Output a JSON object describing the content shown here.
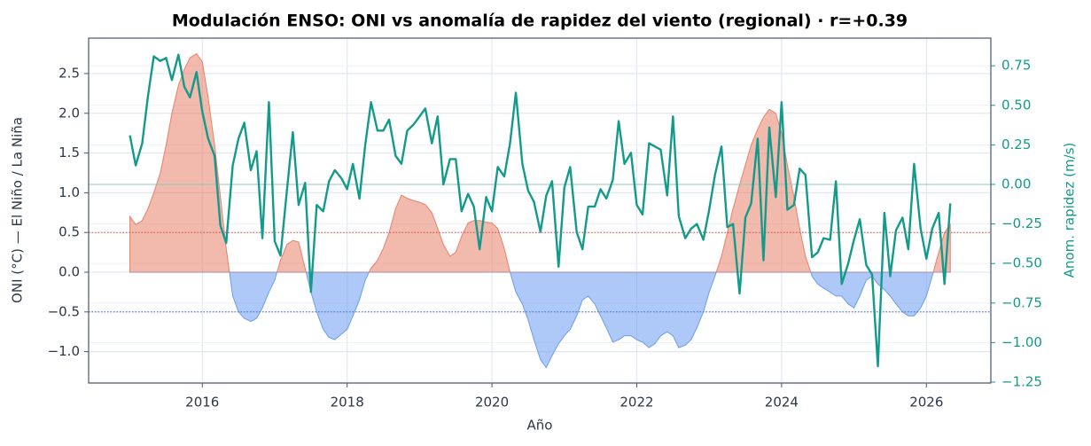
{
  "chart_data": {
    "type": "area-line",
    "title": "Modulación ENSO: ONI vs anomalía de rapidez del viento (regional) · r=+0.39",
    "x_label": "Año",
    "y_label": "ONI (°C) — El Niño / La Niña",
    "y2_label": "Anom. rapidez (m/s)",
    "x": [
      2015,
      2015.08,
      2015.17,
      2015.25,
      2015.33,
      2015.42,
      2015.5,
      2015.58,
      2015.67,
      2015.75,
      2015.83,
      2015.92,
      2016,
      2016.08,
      2016.17,
      2016.25,
      2016.33,
      2016.42,
      2016.5,
      2016.58,
      2016.67,
      2016.75,
      2016.83,
      2016.92,
      2017,
      2017.08,
      2017.17,
      2017.25,
      2017.33,
      2017.42,
      2017.5,
      2017.58,
      2017.67,
      2017.75,
      2017.83,
      2017.92,
      2018,
      2018.08,
      2018.17,
      2018.25,
      2018.33,
      2018.42,
      2018.5,
      2018.58,
      2018.67,
      2018.75,
      2018.83,
      2018.92,
      2019,
      2019.08,
      2019.17,
      2019.25,
      2019.33,
      2019.42,
      2019.5,
      2019.58,
      2019.67,
      2019.75,
      2019.83,
      2019.92,
      2020,
      2020.08,
      2020.17,
      2020.25,
      2020.33,
      2020.42,
      2020.5,
      2020.58,
      2020.67,
      2020.75,
      2020.83,
      2020.92,
      2021,
      2021.08,
      2021.17,
      2021.25,
      2021.33,
      2021.42,
      2021.5,
      2021.58,
      2021.67,
      2021.75,
      2021.83,
      2021.92,
      2022,
      2022.08,
      2022.17,
      2022.25,
      2022.33,
      2022.42,
      2022.5,
      2022.58,
      2022.67,
      2022.75,
      2022.83,
      2022.92,
      2023,
      2023.08,
      2023.17,
      2023.25,
      2023.33,
      2023.42,
      2023.5,
      2023.58,
      2023.67,
      2023.75,
      2023.83,
      2023.92,
      2024,
      2024.08,
      2024.17,
      2024.25,
      2024.33,
      2024.42,
      2024.5,
      2024.58,
      2024.67,
      2024.75,
      2024.83,
      2024.92,
      2025,
      2025.08,
      2025.17,
      2025.25,
      2025.33,
      2025.42,
      2025.5,
      2025.58,
      2025.67,
      2025.75,
      2025.83,
      2025.92,
      2026,
      2026.08,
      2026.17,
      2026.25,
      2026.33
    ],
    "series": [
      {
        "type": "area",
        "axis": "y",
        "colors": {
          "positive": "#e8806a",
          "negative": "#6b9cf0"
        },
        "values": [
          0.7,
          0.6,
          0.65,
          0.8,
          1.0,
          1.25,
          1.6,
          2.0,
          2.35,
          2.55,
          2.7,
          2.75,
          2.65,
          2.2,
          1.6,
          0.95,
          0.3,
          -0.3,
          -0.5,
          -0.58,
          -0.62,
          -0.58,
          -0.45,
          -0.25,
          -0.1,
          0.15,
          0.35,
          0.4,
          0.38,
          0.05,
          -0.25,
          -0.5,
          -0.72,
          -0.82,
          -0.85,
          -0.78,
          -0.72,
          -0.55,
          -0.35,
          -0.1,
          0.05,
          0.15,
          0.3,
          0.5,
          0.8,
          0.97,
          0.93,
          0.9,
          0.88,
          0.85,
          0.75,
          0.55,
          0.35,
          0.2,
          0.25,
          0.45,
          0.62,
          0.65,
          0.65,
          0.63,
          0.62,
          0.55,
          0.3,
          0.0,
          -0.25,
          -0.4,
          -0.6,
          -0.85,
          -1.1,
          -1.2,
          -1.05,
          -0.9,
          -0.8,
          -0.72,
          -0.55,
          -0.35,
          -0.3,
          -0.4,
          -0.55,
          -0.7,
          -0.88,
          -0.85,
          -0.8,
          -0.8,
          -0.85,
          -0.88,
          -0.95,
          -0.9,
          -0.8,
          -0.75,
          -0.8,
          -0.95,
          -0.92,
          -0.85,
          -0.7,
          -0.5,
          -0.25,
          -0.05,
          0.2,
          0.5,
          0.8,
          1.1,
          1.35,
          1.6,
          1.8,
          1.95,
          2.05,
          2.0,
          1.75,
          1.35,
          0.95,
          0.55,
          0.2,
          -0.05,
          -0.15,
          -0.2,
          -0.25,
          -0.3,
          -0.3,
          -0.4,
          -0.45,
          -0.3,
          -0.1,
          -0.05,
          -0.15,
          -0.22,
          -0.3,
          -0.4,
          -0.5,
          -0.55,
          -0.55,
          -0.45,
          -0.3,
          -0.05,
          0.25,
          0.5,
          0.6
        ]
      },
      {
        "type": "line",
        "axis": "y2",
        "color": "#139a8b",
        "values": [
          0.31,
          0.12,
          0.26,
          0.56,
          0.81,
          0.78,
          0.8,
          0.66,
          0.82,
          0.62,
          0.55,
          0.71,
          0.46,
          0.29,
          0.18,
          -0.26,
          -0.37,
          0.12,
          0.29,
          0.39,
          0.09,
          0.21,
          -0.34,
          0.52,
          -0.36,
          -0.45,
          -0.03,
          0.33,
          -0.13,
          0.01,
          -0.68,
          -0.13,
          -0.17,
          0.02,
          0.09,
          0.04,
          -0.03,
          0.13,
          -0.09,
          0.25,
          0.52,
          0.34,
          0.34,
          0.41,
          0.18,
          0.13,
          0.34,
          0.38,
          0.43,
          0.48,
          0.26,
          0.43,
          0.0,
          0.16,
          0.16,
          -0.17,
          -0.06,
          -0.14,
          -0.41,
          -0.08,
          -0.17,
          0.11,
          0.05,
          0.26,
          0.58,
          0.13,
          -0.04,
          -0.11,
          -0.3,
          -0.07,
          0.02,
          -0.52,
          -0.02,
          0.11,
          -0.3,
          -0.41,
          -0.14,
          -0.14,
          -0.03,
          -0.09,
          0.03,
          0.4,
          0.13,
          0.2,
          -0.13,
          -0.19,
          0.26,
          0.24,
          0.22,
          -0.07,
          0.43,
          -0.2,
          -0.34,
          -0.28,
          -0.25,
          -0.35,
          -0.16,
          0.06,
          0.24,
          -0.27,
          -0.25,
          -0.69,
          -0.21,
          -0.12,
          0.29,
          -0.48,
          0.36,
          -0.08,
          0.52,
          -0.16,
          -0.13,
          0.1,
          0.06,
          -0.46,
          -0.43,
          -0.34,
          -0.35,
          0.02,
          -0.63,
          -0.5,
          -0.35,
          -0.22,
          -0.51,
          -0.57,
          -1.15,
          -0.18,
          -0.58,
          -0.29,
          -0.21,
          -0.41,
          0.13,
          -0.28,
          -0.47,
          -0.28,
          -0.18,
          -0.63,
          -0.12
        ]
      }
    ],
    "reference_lines": [
      {
        "axis": "y",
        "value": 0.5,
        "color": "#e74c3c",
        "dash": true
      },
      {
        "axis": "y",
        "value": -0.5,
        "color": "#3b6fd1",
        "dash": true
      },
      {
        "axis": "y2",
        "value": 0,
        "color": "#8fc7bf",
        "dash": false
      }
    ],
    "xlim": [
      2014.43,
      2026.89
    ],
    "xticks": [
      2016,
      2018,
      2020,
      2022,
      2024,
      2026
    ],
    "ylim": [
      -1.395,
      2.946
    ],
    "yticks": [
      {
        "value": -1,
        "label": "−1.0"
      },
      {
        "value": -0.5,
        "label": "−0.5"
      },
      {
        "value": 0,
        "label": "0.0"
      },
      0.5,
      {
        "value": 1,
        "label": "1.0"
      },
      1.5,
      {
        "value": 2,
        "label": "2.0"
      },
      2.5
    ],
    "y2lim": [
      -1.256,
      0.925
    ],
    "y2ticks": [
      {
        "value": -1.25,
        "label": "−1.25"
      },
      {
        "value": -1,
        "label": "−1.00"
      },
      {
        "value": -0.75,
        "label": "−0.75"
      },
      {
        "value": -0.5,
        "label": "−0.50"
      },
      {
        "value": -0.25,
        "label": "−0.25"
      },
      {
        "value": 0,
        "label": "0.00"
      },
      {
        "value": 0.25,
        "label": "0.25"
      },
      {
        "value": 0.5,
        "label": "0.50"
      },
      {
        "value": 0.75,
        "label": "0.75"
      }
    ],
    "grid": true
  }
}
